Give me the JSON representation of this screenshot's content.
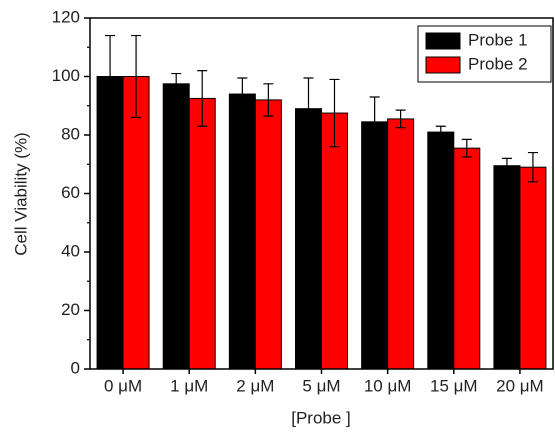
{
  "chart_data": {
    "type": "bar",
    "y_label": "Cell Viability (%)",
    "x_label": "[Probe ]",
    "categories": [
      "0 μM",
      "1 μM",
      "2 μM",
      "5 μM",
      "10 μM",
      "15 μM",
      "20 μM"
    ],
    "series": [
      {
        "name": "Probe 1",
        "color": "#000000",
        "values": [
          100,
          97.5,
          94,
          89,
          84.5,
          81,
          69.5
        ],
        "errors": [
          14,
          3.5,
          5.5,
          10.5,
          8.5,
          2,
          2.5
        ]
      },
      {
        "name": "Probe 2",
        "color": "#ff0000",
        "values": [
          100,
          92.5,
          92,
          87.5,
          85.5,
          75.5,
          69
        ],
        "errors": [
          14,
          9.5,
          5.5,
          11.5,
          3,
          3,
          5
        ]
      }
    ],
    "ylim": [
      0,
      120
    ],
    "yticks": [
      0,
      20,
      40,
      60,
      80,
      100,
      120
    ],
    "legend": "top-right"
  }
}
